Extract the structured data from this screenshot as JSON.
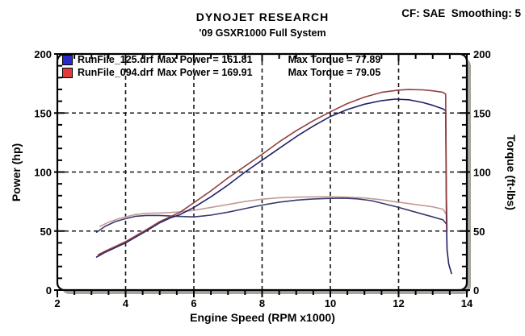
{
  "header": {
    "brand": "DYNOJET RESEARCH",
    "correction": "CF: SAE  Smoothing: 5",
    "subtitle": "'09 GSXR1000 Full System"
  },
  "legend": {
    "series": [
      {
        "file": "RunFile_125.drf",
        "power_label": "Max Power = 161.81",
        "torque_label": "Max Torque = 77.89",
        "swatch_color": "#2a2acc"
      },
      {
        "file": "RunFile_094.drf",
        "power_label": "Max Power = 169.91",
        "torque_label": "Max Torque = 79.05",
        "swatch_color": "#e03a3a"
      }
    ]
  },
  "axes": {
    "left_title": "Power (hp)",
    "right_title": "Torque (ft-lbs)",
    "bottom_title": "Engine Speed (RPM x1000)"
  },
  "chart_data": {
    "type": "line",
    "title": "'09 GSXR1000 Full System",
    "xlabel": "Engine Speed (RPM x1000)",
    "ylabel_left": "Power (hp)",
    "ylabel_right": "Torque (ft-lbs)",
    "xlim": [
      2,
      14
    ],
    "ylim": [
      0,
      200
    ],
    "x_ticks": [
      2,
      4,
      6,
      8,
      10,
      12,
      14
    ],
    "x_minor_step": 0.5,
    "y_ticks": [
      0,
      50,
      100,
      150,
      200
    ],
    "y_minor_step": 10,
    "grid": "black dashed lines at interior major ticks",
    "legend_position": "top-left inside plot",
    "frame_style": "rounded black frame with gray drop shadow",
    "series": [
      {
        "name": "RunFile_094 torque",
        "unit": "ft-lbs",
        "axis": "right",
        "color": "#c49a96",
        "max_value": 79.05,
        "points": [
          [
            3.25,
            54
          ],
          [
            3.5,
            57.5
          ],
          [
            3.8,
            60.5
          ],
          [
            4,
            62
          ],
          [
            4.3,
            64
          ],
          [
            4.6,
            65
          ],
          [
            5,
            65.3
          ],
          [
            5.5,
            66
          ],
          [
            6,
            67.5
          ],
          [
            6.5,
            70
          ],
          [
            7,
            72.5
          ],
          [
            7.5,
            75
          ],
          [
            8,
            77
          ],
          [
            8.5,
            78.2
          ],
          [
            9,
            78.7
          ],
          [
            9.5,
            79
          ],
          [
            10,
            79.05
          ],
          [
            10.5,
            78.7
          ],
          [
            11,
            78
          ],
          [
            11.5,
            76.5
          ],
          [
            12,
            74.5
          ],
          [
            12.5,
            72.5
          ],
          [
            13,
            70.5
          ],
          [
            13.3,
            68.5
          ],
          [
            13.4,
            64
          ]
        ]
      },
      {
        "name": "RunFile_125 torque",
        "unit": "ft-lbs",
        "axis": "right",
        "color": "#3a3a6e",
        "max_value": 77.89,
        "points": [
          [
            3.15,
            49
          ],
          [
            3.4,
            54
          ],
          [
            3.7,
            58
          ],
          [
            4,
            60.5
          ],
          [
            4.3,
            62.5
          ],
          [
            4.6,
            63.2
          ],
          [
            5,
            63.2
          ],
          [
            5.5,
            62.5
          ],
          [
            6,
            62
          ],
          [
            6.5,
            63.5
          ],
          [
            7,
            66
          ],
          [
            7.5,
            69
          ],
          [
            8,
            72
          ],
          [
            8.5,
            74.5
          ],
          [
            9,
            76.2
          ],
          [
            9.5,
            77.2
          ],
          [
            10,
            77.7
          ],
          [
            10.4,
            77.89
          ],
          [
            10.8,
            77.3
          ],
          [
            11.2,
            75.8
          ],
          [
            11.6,
            73
          ],
          [
            12,
            70
          ],
          [
            12.5,
            66
          ],
          [
            13,
            62
          ],
          [
            13.3,
            59.5
          ],
          [
            13.4,
            56
          ]
        ]
      },
      {
        "name": "RunFile_125 power",
        "unit": "hp",
        "axis": "left",
        "color": "#20206a",
        "max_value": 161.81,
        "points": [
          [
            3.15,
            28
          ],
          [
            3.4,
            32
          ],
          [
            3.7,
            36
          ],
          [
            4,
            40
          ],
          [
            4.3,
            45
          ],
          [
            4.6,
            50
          ],
          [
            5,
            57
          ],
          [
            5.3,
            61
          ],
          [
            5.6,
            64
          ],
          [
            6,
            70
          ],
          [
            6.5,
            79
          ],
          [
            7,
            89
          ],
          [
            7.5,
            100
          ],
          [
            8,
            110
          ],
          [
            8.5,
            120
          ],
          [
            9,
            130
          ],
          [
            9.5,
            139
          ],
          [
            10,
            147
          ],
          [
            10.5,
            153
          ],
          [
            11,
            157.5
          ],
          [
            11.5,
            160.5
          ],
          [
            11.9,
            161.8
          ],
          [
            12.3,
            161.2
          ],
          [
            12.7,
            159
          ],
          [
            13,
            156.5
          ],
          [
            13.3,
            153.5
          ],
          [
            13.38,
            152
          ],
          [
            13.4,
            60
          ],
          [
            13.42,
            34
          ],
          [
            13.47,
            22
          ],
          [
            13.55,
            14
          ]
        ]
      },
      {
        "name": "RunFile_094 power",
        "unit": "hp",
        "axis": "left",
        "color": "#92403f",
        "max_value": 169.91,
        "points": [
          [
            3.2,
            30
          ],
          [
            3.4,
            33
          ],
          [
            3.7,
            37
          ],
          [
            4,
            41
          ],
          [
            4.3,
            46
          ],
          [
            4.6,
            51
          ],
          [
            5,
            58
          ],
          [
            5.3,
            62
          ],
          [
            5.6,
            66
          ],
          [
            6,
            74
          ],
          [
            6.5,
            84
          ],
          [
            7,
            95
          ],
          [
            7.5,
            105
          ],
          [
            8,
            115
          ],
          [
            8.5,
            125.5
          ],
          [
            9,
            135
          ],
          [
            9.5,
            143.5
          ],
          [
            10,
            151
          ],
          [
            10.5,
            158
          ],
          [
            11,
            163.5
          ],
          [
            11.5,
            167.5
          ],
          [
            12,
            169.4
          ],
          [
            12.3,
            169.9
          ],
          [
            12.7,
            169.6
          ],
          [
            13,
            168.8
          ],
          [
            13.3,
            167.5
          ],
          [
            13.38,
            166
          ],
          [
            13.4,
            80
          ],
          [
            13.42,
            50
          ]
        ]
      }
    ]
  }
}
